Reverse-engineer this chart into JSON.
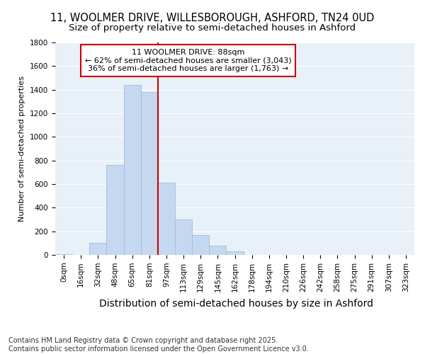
{
  "title_line1": "11, WOOLMER DRIVE, WILLESBOROUGH, ASHFORD, TN24 0UD",
  "title_line2": "Size of property relative to semi-detached houses in Ashford",
  "xlabel": "Distribution of semi-detached houses by size in Ashford",
  "ylabel": "Number of semi-detached properties",
  "categories": [
    "0sqm",
    "16sqm",
    "32sqm",
    "48sqm",
    "65sqm",
    "81sqm",
    "97sqm",
    "113sqm",
    "129sqm",
    "145sqm",
    "162sqm",
    "178sqm",
    "194sqm",
    "210sqm",
    "226sqm",
    "242sqm",
    "258sqm",
    "275sqm",
    "291sqm",
    "307sqm",
    "323sqm"
  ],
  "values": [
    5,
    0,
    100,
    760,
    1440,
    1380,
    610,
    300,
    170,
    80,
    30,
    0,
    0,
    0,
    0,
    0,
    0,
    0,
    0,
    0,
    0
  ],
  "bar_color": "#c5d8f0",
  "bar_edge_color": "#a0bcd8",
  "property_label": "11 WOOLMER DRIVE: 88sqm",
  "pct_smaller": 62,
  "pct_smaller_count": "3,043",
  "pct_larger": 36,
  "pct_larger_count": "1,763",
  "vline_color": "#cc0000",
  "box_color": "#cc0000",
  "ylim": [
    0,
    1800
  ],
  "yticks": [
    0,
    200,
    400,
    600,
    800,
    1000,
    1200,
    1400,
    1600,
    1800
  ],
  "background_color": "#e8f0f8",
  "grid_color": "#ffffff",
  "footer": "Contains HM Land Registry data © Crown copyright and database right 2025.\nContains public sector information licensed under the Open Government Licence v3.0.",
  "title_fontsize": 10.5,
  "subtitle_fontsize": 9.5,
  "xlabel_fontsize": 10,
  "ylabel_fontsize": 8,
  "tick_fontsize": 7.5,
  "annotation_fontsize": 8,
  "footer_fontsize": 7
}
